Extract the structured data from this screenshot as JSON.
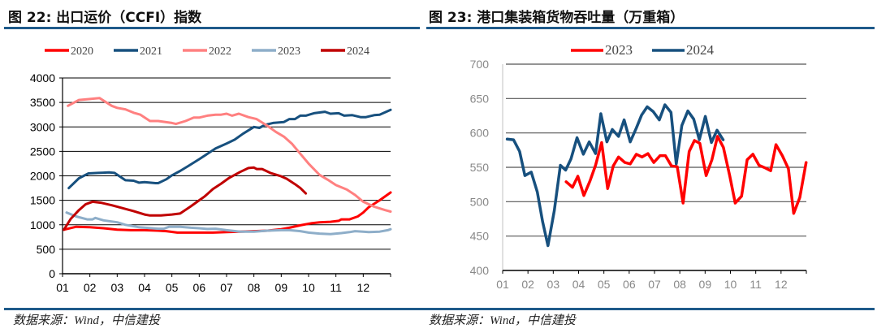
{
  "charts_meta": {
    "left_title": "图 22: 出口运价（CCFI）指数",
    "right_title": "图 23: 港口集装箱货物吞吐量（万重箱）",
    "left_source": "数据来源：Wind，中信建投",
    "right_source": "数据来源：Wind，中信建投",
    "rule_color": "#1f5a8a"
  },
  "chart_data": [
    {
      "type": "line",
      "title": "图 22: 出口运价（CCFI）指数",
      "xlabel": "",
      "ylabel": "",
      "x_unit": "month",
      "xticks": [
        "01",
        "02",
        "03",
        "04",
        "05",
        "06",
        "07",
        "08",
        "09",
        "10",
        "11",
        "12"
      ],
      "xlim": [
        1,
        13
      ],
      "ylim": [
        0,
        4000
      ],
      "yticks": [
        0,
        500,
        1000,
        1500,
        2000,
        2500,
        3000,
        3500,
        4000
      ],
      "grid": true,
      "legend": "top",
      "series": [
        {
          "name": "2020",
          "color": "#ff0000",
          "points": [
            [
              1.05,
              900
            ],
            [
              1.5,
              960
            ],
            [
              2,
              950
            ],
            [
              2.5,
              930
            ],
            [
              3,
              900
            ],
            [
              3.5,
              890
            ],
            [
              4,
              890
            ],
            [
              4.5,
              880
            ],
            [
              4.8,
              870
            ],
            [
              5.2,
              840
            ],
            [
              6,
              840
            ],
            [
              6.5,
              840
            ],
            [
              7,
              850
            ],
            [
              7.5,
              860
            ],
            [
              8,
              870
            ],
            [
              8.5,
              880
            ],
            [
              9,
              910
            ],
            [
              9.3,
              940
            ],
            [
              9.7,
              990
            ],
            [
              10.1,
              1030
            ],
            [
              10.4,
              1050
            ],
            [
              10.8,
              1060
            ],
            [
              11.1,
              1080
            ],
            [
              11.2,
              1110
            ],
            [
              11.5,
              1110
            ],
            [
              11.8,
              1170
            ],
            [
              12,
              1250
            ],
            [
              12.2,
              1360
            ],
            [
              12.6,
              1500
            ],
            [
              13,
              1660
            ]
          ]
        },
        {
          "name": "2021",
          "color": "#17507e",
          "points": [
            [
              1.23,
              1750
            ],
            [
              1.6,
              1950
            ],
            [
              1.95,
              2050
            ],
            [
              2.3,
              2060
            ],
            [
              2.7,
              2070
            ],
            [
              2.9,
              2060
            ],
            [
              3.3,
              1910
            ],
            [
              3.6,
              1900
            ],
            [
              3.8,
              1860
            ],
            [
              4,
              1870
            ],
            [
              4.4,
              1850
            ],
            [
              4.5,
              1850
            ],
            [
              4.8,
              1930
            ],
            [
              5,
              2010
            ],
            [
              5.3,
              2100
            ],
            [
              5.6,
              2200
            ],
            [
              6,
              2340
            ],
            [
              6.3,
              2450
            ],
            [
              6.6,
              2560
            ],
            [
              7,
              2660
            ],
            [
              7.3,
              2740
            ],
            [
              7.6,
              2860
            ],
            [
              8,
              3000
            ],
            [
              8.2,
              2980
            ],
            [
              8.4,
              3040
            ],
            [
              8.7,
              3080
            ],
            [
              9.1,
              3100
            ],
            [
              9.3,
              3160
            ],
            [
              9.5,
              3160
            ],
            [
              9.7,
              3230
            ],
            [
              9.9,
              3230
            ],
            [
              10.2,
              3280
            ],
            [
              10.6,
              3310
            ],
            [
              10.8,
              3270
            ],
            [
              11.1,
              3280
            ],
            [
              11.3,
              3230
            ],
            [
              11.6,
              3240
            ],
            [
              11.9,
              3200
            ],
            [
              12.1,
              3200
            ],
            [
              12.4,
              3240
            ],
            [
              12.6,
              3250
            ],
            [
              13,
              3350
            ]
          ]
        },
        {
          "name": "2022",
          "color": "#ff8080",
          "points": [
            [
              1.2,
              3430
            ],
            [
              1.6,
              3550
            ],
            [
              2,
              3570
            ],
            [
              2.35,
              3590
            ],
            [
              2.8,
              3430
            ],
            [
              3,
              3390
            ],
            [
              3.3,
              3360
            ],
            [
              3.6,
              3290
            ],
            [
              3.85,
              3250
            ],
            [
              4.2,
              3120
            ],
            [
              4.5,
              3120
            ],
            [
              5,
              3080
            ],
            [
              5.15,
              3060
            ],
            [
              5.5,
              3120
            ],
            [
              5.8,
              3190
            ],
            [
              6,
              3190
            ],
            [
              6.3,
              3230
            ],
            [
              6.6,
              3250
            ],
            [
              6.8,
              3250
            ],
            [
              7,
              3270
            ],
            [
              7.2,
              3230
            ],
            [
              7.45,
              3270
            ],
            [
              7.8,
              3200
            ],
            [
              8.1,
              3160
            ],
            [
              8.5,
              3020
            ],
            [
              8.8,
              2900
            ],
            [
              9.1,
              2800
            ],
            [
              9.4,
              2650
            ],
            [
              9.7,
              2450
            ],
            [
              10,
              2250
            ],
            [
              10.4,
              2020
            ],
            [
              10.7,
              1920
            ],
            [
              11,
              1810
            ],
            [
              11.4,
              1720
            ],
            [
              11.7,
              1610
            ],
            [
              12,
              1470
            ],
            [
              12.4,
              1370
            ],
            [
              12.8,
              1300
            ],
            [
              13,
              1270
            ]
          ]
        },
        {
          "name": "2023",
          "color": "#8eaec9",
          "points": [
            [
              1.15,
              1250
            ],
            [
              1.5,
              1170
            ],
            [
              1.9,
              1110
            ],
            [
              2.1,
              1110
            ],
            [
              2.2,
              1140
            ],
            [
              2.5,
              1090
            ],
            [
              3,
              1050
            ],
            [
              3.3,
              1000
            ],
            [
              3.8,
              950
            ],
            [
              4.5,
              920
            ],
            [
              4.7,
              920
            ],
            [
              4.9,
              960
            ],
            [
              5.3,
              960
            ],
            [
              5.7,
              940
            ],
            [
              6,
              930
            ],
            [
              6.3,
              915
            ],
            [
              6.6,
              920
            ],
            [
              7,
              890
            ],
            [
              7.5,
              860
            ],
            [
              8,
              860
            ],
            [
              8.5,
              880
            ],
            [
              9,
              890
            ],
            [
              9.3,
              890
            ],
            [
              9.7,
              870
            ],
            [
              10,
              840
            ],
            [
              10.4,
              820
            ],
            [
              10.8,
              810
            ],
            [
              11.2,
              830
            ],
            [
              11.5,
              850
            ],
            [
              11.7,
              870
            ],
            [
              12,
              860
            ],
            [
              12.2,
              850
            ],
            [
              12.6,
              860
            ],
            [
              12.9,
              890
            ],
            [
              13,
              910
            ]
          ]
        },
        {
          "name": "2024",
          "color": "#c00000",
          "points": [
            [
              1.05,
              900
            ],
            [
              1.3,
              1120
            ],
            [
              1.6,
              1300
            ],
            [
              1.85,
              1420
            ],
            [
              2.1,
              1470
            ],
            [
              2.4,
              1450
            ],
            [
              2.8,
              1400
            ],
            [
              3.2,
              1340
            ],
            [
              3.6,
              1280
            ],
            [
              4,
              1210
            ],
            [
              4.2,
              1190
            ],
            [
              4.6,
              1190
            ],
            [
              5,
              1210
            ],
            [
              5.3,
              1230
            ],
            [
              5.7,
              1380
            ],
            [
              6,
              1500
            ],
            [
              6.2,
              1580
            ],
            [
              6.5,
              1730
            ],
            [
              6.8,
              1840
            ],
            [
              7.1,
              1960
            ],
            [
              7.5,
              2080
            ],
            [
              7.8,
              2160
            ],
            [
              8,
              2170
            ],
            [
              8.1,
              2140
            ],
            [
              8.3,
              2140
            ],
            [
              8.6,
              2060
            ],
            [
              9,
              1990
            ],
            [
              9.2,
              1940
            ],
            [
              9.5,
              1830
            ],
            [
              9.7,
              1750
            ],
            [
              9.9,
              1640
            ]
          ]
        }
      ]
    },
    {
      "type": "line",
      "title": "图 23: 港口集装箱货物吞吐量（万重箱）",
      "xlabel": "",
      "ylabel": "",
      "x_unit": "month",
      "xticks": [
        "01",
        "02",
        "03",
        "04",
        "05",
        "06",
        "07",
        "08",
        "09",
        "10",
        "11",
        "12"
      ],
      "xlim": [
        1,
        13
      ],
      "ylim": [
        400,
        700
      ],
      "yticks": [
        400,
        450,
        500,
        550,
        600,
        650,
        700
      ],
      "grid": true,
      "legend": "top",
      "series": [
        {
          "name": "2023",
          "color": "#ff0000",
          "points": [
            [
              3.51,
              529
            ],
            [
              3.76,
              521
            ],
            [
              3.97,
              537
            ],
            [
              4.21,
              509
            ],
            [
              4.45,
              530
            ],
            [
              4.67,
              553
            ],
            [
              4.91,
              586
            ],
            [
              5.15,
              519
            ],
            [
              5.37,
              552
            ],
            [
              5.58,
              565
            ],
            [
              5.83,
              557
            ],
            [
              6.04,
              555
            ],
            [
              6.28,
              569
            ],
            [
              6.51,
              565
            ],
            [
              6.74,
              570
            ],
            [
              6.97,
              557
            ],
            [
              7.22,
              567
            ],
            [
              7.43,
              567
            ],
            [
              7.67,
              552
            ],
            [
              7.9,
              551
            ],
            [
              8.13,
              498
            ],
            [
              8.37,
              573
            ],
            [
              8.58,
              589
            ],
            [
              8.79,
              585
            ],
            [
              9.04,
              538
            ],
            [
              9.27,
              561
            ],
            [
              9.49,
              595
            ],
            [
              9.72,
              579
            ],
            [
              9.97,
              538
            ],
            [
              10.19,
              498
            ],
            [
              10.44,
              508
            ],
            [
              10.66,
              561
            ],
            [
              10.89,
              569
            ],
            [
              11.13,
              553
            ],
            [
              11.38,
              549
            ],
            [
              11.59,
              545
            ],
            [
              11.8,
              583
            ],
            [
              12.05,
              567
            ],
            [
              12.29,
              548
            ],
            [
              12.5,
              483
            ],
            [
              12.74,
              506
            ],
            [
              12.99,
              557
            ]
          ]
        },
        {
          "name": "2024",
          "color": "#17507e",
          "points": [
            [
              1.18,
              591
            ],
            [
              1.43,
              590
            ],
            [
              1.67,
              573
            ],
            [
              1.88,
              538
            ],
            [
              2.13,
              543
            ],
            [
              2.37,
              514
            ],
            [
              2.58,
              471
            ],
            [
              2.79,
              436
            ],
            [
              3.04,
              487
            ],
            [
              3.28,
              553
            ],
            [
              3.49,
              546
            ],
            [
              3.7,
              562
            ],
            [
              3.94,
              593
            ],
            [
              4.19,
              569
            ],
            [
              4.42,
              587
            ],
            [
              4.67,
              570
            ],
            [
              4.88,
              628
            ],
            [
              5.12,
              587
            ],
            [
              5.33,
              605
            ],
            [
              5.58,
              595
            ],
            [
              5.8,
              619
            ],
            [
              6.04,
              587
            ],
            [
              6.28,
              607
            ],
            [
              6.49,
              626
            ],
            [
              6.71,
              638
            ],
            [
              6.95,
              631
            ],
            [
              7.19,
              619
            ],
            [
              7.41,
              641
            ],
            [
              7.65,
              630
            ],
            [
              7.86,
              555
            ],
            [
              8.08,
              611
            ],
            [
              8.32,
              632
            ],
            [
              8.55,
              620
            ],
            [
              8.77,
              590
            ],
            [
              9.01,
              624
            ],
            [
              9.25,
              586
            ],
            [
              9.47,
              604
            ],
            [
              9.71,
              590
            ]
          ]
        }
      ]
    }
  ]
}
